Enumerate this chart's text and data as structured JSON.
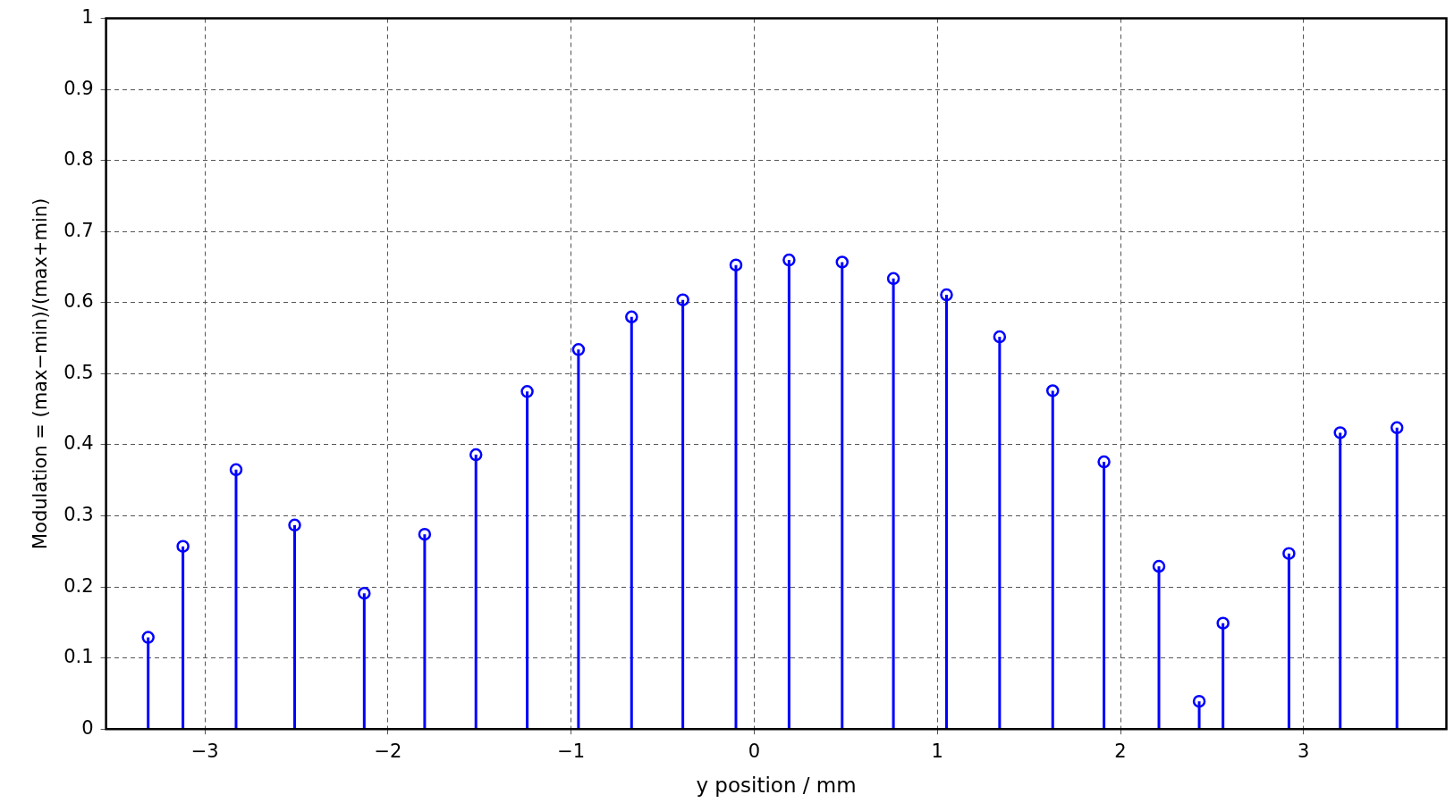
{
  "chart_data": {
    "type": "lollipop",
    "xlabel": "y position / mm",
    "ylabel": "Modulation = (max−min)/(max+min)",
    "x": [
      -3.31,
      -3.12,
      -2.83,
      -2.51,
      -2.13,
      -1.8,
      -1.52,
      -1.24,
      -0.96,
      -0.67,
      -0.39,
      -0.1,
      0.19,
      0.48,
      0.76,
      1.05,
      1.34,
      1.63,
      1.91,
      2.21,
      2.43,
      2.56,
      2.92,
      3.2,
      3.51
    ],
    "values": [
      0.129,
      0.257,
      0.365,
      0.287,
      0.191,
      0.274,
      0.386,
      0.475,
      0.534,
      0.58,
      0.604,
      0.653,
      0.66,
      0.657,
      0.634,
      0.611,
      0.552,
      0.476,
      0.376,
      0.229,
      0.039,
      0.149,
      0.247,
      0.417,
      0.424
    ],
    "color": "#0000ff",
    "marker": "circle",
    "grid": true,
    "legend": false,
    "xlim": [
      -3.54,
      3.78
    ],
    "xticks": [
      -3,
      -2,
      -1,
      0,
      1,
      2,
      3
    ],
    "ylim": [
      0,
      1
    ],
    "yticks": [
      0,
      0.1,
      0.2,
      0.3,
      0.4,
      0.5,
      0.6,
      0.7,
      0.8,
      0.9,
      1
    ]
  }
}
